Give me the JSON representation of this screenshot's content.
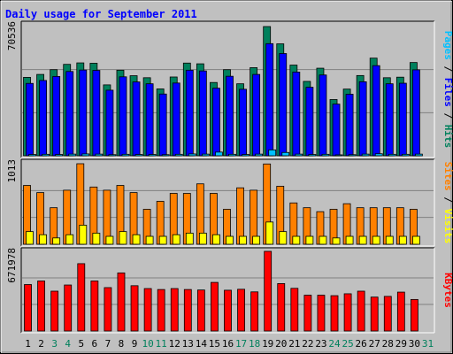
{
  "chart_data": {
    "title": "Daily usage for September 2011",
    "type": "bar",
    "days": [
      "1",
      "2",
      "3",
      "4",
      "5",
      "6",
      "7",
      "8",
      "9",
      "10",
      "11",
      "12",
      "13",
      "14",
      "15",
      "16",
      "17",
      "18",
      "19",
      "20",
      "21",
      "22",
      "23",
      "24",
      "25",
      "26",
      "27",
      "28",
      "29",
      "30",
      "31"
    ],
    "weekend_days": [
      "3",
      "4",
      "10",
      "11",
      "17",
      "18",
      "24",
      "25",
      "31"
    ],
    "panels": [
      {
        "id": "hits",
        "ymax_label": "70536",
        "legend": [
          {
            "text": "Hits",
            "color": "#00805c"
          },
          {
            "text": " / ",
            "color": "#000000"
          },
          {
            "text": "Files",
            "color": "#0000ff"
          },
          {
            "text": " / ",
            "color": "#000000"
          },
          {
            "text": "Pages",
            "color": "#00c0ff"
          }
        ],
        "ylim": [
          0,
          70536
        ],
        "series": [
          {
            "name": "Hits",
            "color": "#00805c",
            "values": [
              42800,
              44400,
              47000,
              49900,
              50700,
              50500,
              38700,
              46700,
              43700,
              42600,
              36500,
              43000,
              50600,
              50200,
              40000,
              47000,
              39300,
              48100,
              70536,
              61100,
              49500,
              40600,
              47800,
              30700,
              36400,
              43800,
              53300,
              42600,
              42900,
              50900,
              0
            ]
          },
          {
            "name": "Files",
            "color": "#0000ff",
            "values": [
              39500,
              41100,
              43300,
              46000,
              46800,
              46600,
              35800,
              43100,
              40300,
              39300,
              33700,
              39700,
              46700,
              46300,
              36900,
              43400,
              36300,
              44400,
              61200,
              55800,
              45700,
              37400,
              44100,
              28200,
              33600,
              40400,
              49200,
              39300,
              39600,
              46900,
              0
            ]
          },
          {
            "name": "Pages",
            "color": "#00c0ff",
            "values": [
              700,
              800,
              700,
              900,
              1000,
              900,
              600,
              800,
              700,
              700,
              600,
              800,
              1000,
              900,
              2000,
              800,
              700,
              900,
              3200,
              1800,
              900,
              700,
              800,
              500,
              600,
              900,
              1100,
              800,
              800,
              900,
              0
            ]
          }
        ]
      },
      {
        "id": "visits",
        "ymax_label": "1013",
        "legend": [
          {
            "text": "Visits",
            "color": "#ffff00"
          },
          {
            "text": " / ",
            "color": "#000000"
          },
          {
            "text": "Sites",
            "color": "#ff8000"
          }
        ],
        "ylim": [
          0,
          1013
        ],
        "series": [
          {
            "name": "Sites",
            "color": "#ff8000",
            "values": [
              740,
              650,
              460,
              680,
              1013,
              720,
              680,
              740,
              650,
              440,
              540,
              640,
              640,
              760,
              640,
              440,
              710,
              680,
              1010,
              730,
              520,
              460,
              410,
              440,
              510,
              460,
              460,
              460,
              460,
              440,
              0
            ]
          },
          {
            "name": "Visits",
            "color": "#ffff00",
            "values": [
              160,
              120,
              80,
              120,
              240,
              140,
              100,
              160,
              120,
              100,
              100,
              120,
              140,
              140,
              120,
              100,
              100,
              100,
              280,
              160,
              100,
              100,
              100,
              80,
              100,
              100,
              100,
              100,
              100,
              100,
              0
            ]
          }
        ]
      },
      {
        "id": "kbytes",
        "ymax_label": "671978",
        "legend": [
          {
            "text": "KBytes",
            "color": "#ff0000"
          }
        ],
        "ylim": [
          0,
          671978
        ],
        "series": [
          {
            "name": "KBytes",
            "color": "#ff0000",
            "values": [
              392000,
              422000,
              336000,
              388000,
              568000,
              422000,
              366000,
              490000,
              382000,
              358000,
              350000,
              358000,
              350000,
              346000,
              410000,
              344000,
              352000,
              330000,
              671978,
              400000,
              360000,
              302000,
              302000,
              298000,
              314000,
              336000,
              286000,
              292000,
              328000,
              266000,
              0
            ]
          }
        ]
      }
    ]
  }
}
